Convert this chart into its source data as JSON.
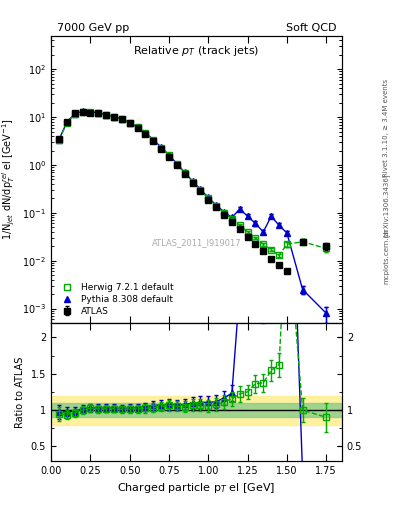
{
  "title_left": "7000 GeV pp",
  "title_right": "Soft QCD",
  "plot_title": "Relative p_{T} (track jets)",
  "xlabel": "Charged particle p$_{T}$ el [GeV]",
  "ylabel_main": "1/N$_{jet}$ dN/dp$^{rel}_{T}$ el [GeV$^{-1}$]",
  "ylabel_ratio": "Ratio to ATLAS",
  "right_label": "Rivet 3.1.10, ≥ 3.4M events",
  "arxiv_label": "[arXiv:1306.3436]",
  "mcplots_label": "mcplots.cern.ch",
  "watermark": "ATLAS_2011_I919017",
  "atlas_x": [
    0.05,
    0.1,
    0.15,
    0.2,
    0.25,
    0.3,
    0.35,
    0.4,
    0.45,
    0.5,
    0.55,
    0.6,
    0.65,
    0.7,
    0.75,
    0.8,
    0.85,
    0.9,
    0.95,
    1.0,
    1.05,
    1.1,
    1.15,
    1.2,
    1.25,
    1.3,
    1.35,
    1.4,
    1.45,
    1.5,
    1.6,
    1.75
  ],
  "atlas_y": [
    3.5,
    8.0,
    12.0,
    13.0,
    12.5,
    12.0,
    11.0,
    10.0,
    9.0,
    7.5,
    6.0,
    4.5,
    3.2,
    2.2,
    1.5,
    1.0,
    0.65,
    0.42,
    0.28,
    0.19,
    0.13,
    0.09,
    0.065,
    0.045,
    0.032,
    0.022,
    0.016,
    0.011,
    0.008,
    0.006,
    0.025,
    0.02
  ],
  "atlas_yerr": [
    0.3,
    0.4,
    0.5,
    0.5,
    0.5,
    0.5,
    0.4,
    0.4,
    0.3,
    0.3,
    0.25,
    0.2,
    0.15,
    0.1,
    0.08,
    0.05,
    0.035,
    0.025,
    0.018,
    0.012,
    0.009,
    0.006,
    0.004,
    0.003,
    0.002,
    0.0015,
    0.001,
    0.0008,
    0.0006,
    0.0004,
    0.003,
    0.003
  ],
  "herwig_x": [
    0.05,
    0.1,
    0.15,
    0.2,
    0.25,
    0.3,
    0.35,
    0.4,
    0.45,
    0.5,
    0.55,
    0.6,
    0.65,
    0.7,
    0.75,
    0.8,
    0.85,
    0.9,
    0.95,
    1.0,
    1.05,
    1.1,
    1.15,
    1.2,
    1.25,
    1.3,
    1.35,
    1.4,
    1.45,
    1.5,
    1.6,
    1.75
  ],
  "herwig_y": [
    3.3,
    7.5,
    11.5,
    13.0,
    12.8,
    12.2,
    11.2,
    10.2,
    9.1,
    7.6,
    6.1,
    4.6,
    3.3,
    2.3,
    1.6,
    1.05,
    0.68,
    0.45,
    0.3,
    0.2,
    0.14,
    0.1,
    0.075,
    0.055,
    0.04,
    0.03,
    0.022,
    0.017,
    0.013,
    0.022,
    0.025,
    0.018
  ],
  "herwig_yerr": [
    0.2,
    0.3,
    0.4,
    0.5,
    0.5,
    0.4,
    0.4,
    0.35,
    0.3,
    0.25,
    0.2,
    0.18,
    0.13,
    0.09,
    0.07,
    0.045,
    0.03,
    0.022,
    0.015,
    0.01,
    0.007,
    0.005,
    0.004,
    0.003,
    0.002,
    0.0018,
    0.0014,
    0.0011,
    0.0009,
    0.003,
    0.003,
    0.003
  ],
  "pythia_x": [
    0.05,
    0.1,
    0.15,
    0.2,
    0.25,
    0.3,
    0.35,
    0.4,
    0.45,
    0.5,
    0.55,
    0.6,
    0.65,
    0.7,
    0.75,
    0.8,
    0.85,
    0.9,
    0.95,
    1.0,
    1.05,
    1.1,
    1.15,
    1.2,
    1.25,
    1.3,
    1.35,
    1.4,
    1.45,
    1.5,
    1.6,
    1.75
  ],
  "pythia_y": [
    3.4,
    7.8,
    11.8,
    13.2,
    12.9,
    12.3,
    11.3,
    10.3,
    9.2,
    7.7,
    6.2,
    4.7,
    3.4,
    2.35,
    1.62,
    1.07,
    0.7,
    0.46,
    0.31,
    0.21,
    0.145,
    0.105,
    0.08,
    0.12,
    0.085,
    0.06,
    0.04,
    0.085,
    0.055,
    0.038,
    0.0025,
    0.0008
  ],
  "pythia_yerr": [
    0.2,
    0.3,
    0.4,
    0.45,
    0.45,
    0.4,
    0.35,
    0.32,
    0.28,
    0.24,
    0.19,
    0.16,
    0.12,
    0.09,
    0.07,
    0.045,
    0.03,
    0.021,
    0.015,
    0.01,
    0.007,
    0.005,
    0.005,
    0.01,
    0.008,
    0.006,
    0.004,
    0.008,
    0.005,
    0.004,
    0.0005,
    0.0003
  ],
  "atlas_color": "#000000",
  "herwig_color": "#00aa00",
  "pythia_color": "#0000cc",
  "band_yellow": [
    0.15,
    0.2
  ],
  "band_green": [
    0.1,
    0.15
  ],
  "xlim": [
    0.0,
    1.85
  ],
  "ylim_main": [
    0.0005,
    500.0
  ],
  "ylim_ratio": [
    0.3,
    2.2
  ]
}
